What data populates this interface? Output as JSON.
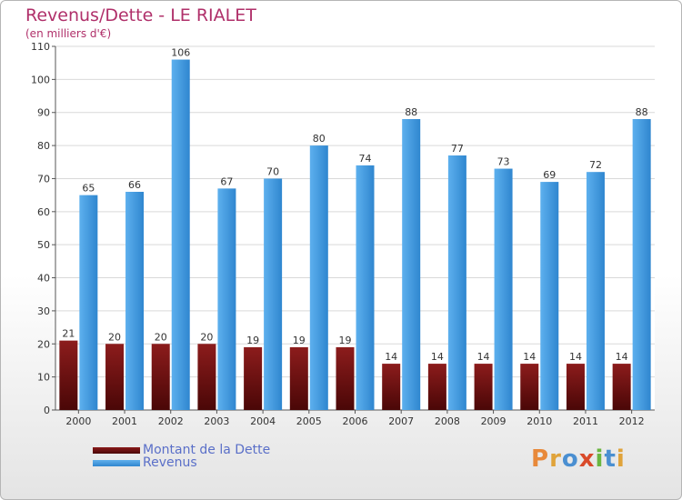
{
  "chart_data": {
    "type": "bar",
    "title": "Revenus/Dette - LE RIALET",
    "subtitle": "(en milliers d'€)",
    "categories": [
      "2000",
      "2001",
      "2002",
      "2003",
      "2004",
      "2005",
      "2006",
      "2007",
      "2008",
      "2009",
      "2010",
      "2011",
      "2012"
    ],
    "series": [
      {
        "name": "Montant de la Dette",
        "color": "#6b0f0f",
        "values": [
          21,
          20,
          20,
          20,
          19,
          19,
          19,
          14,
          14,
          14,
          14,
          14,
          14
        ]
      },
      {
        "name": "Revenus",
        "color": "#3d97dd",
        "values": [
          65,
          66,
          106,
          67,
          70,
          80,
          74,
          88,
          77,
          73,
          69,
          72,
          88
        ]
      }
    ],
    "ylim": [
      0,
      110
    ],
    "yticks": [
      0,
      10,
      20,
      30,
      40,
      50,
      60,
      70,
      80,
      90,
      100,
      110
    ],
    "grid": true,
    "xlabel": "",
    "ylabel": ""
  },
  "legend": {
    "debt_label": "Montant de la Dette",
    "revenue_label": "Revenus"
  },
  "logo": {
    "text": "Proxiti",
    "letter_colors": [
      "#e8893a",
      "#e0a33a",
      "#4a8fd1",
      "#d94a2a",
      "#6ab640",
      "#4a8fd1",
      "#e0a33a"
    ]
  }
}
